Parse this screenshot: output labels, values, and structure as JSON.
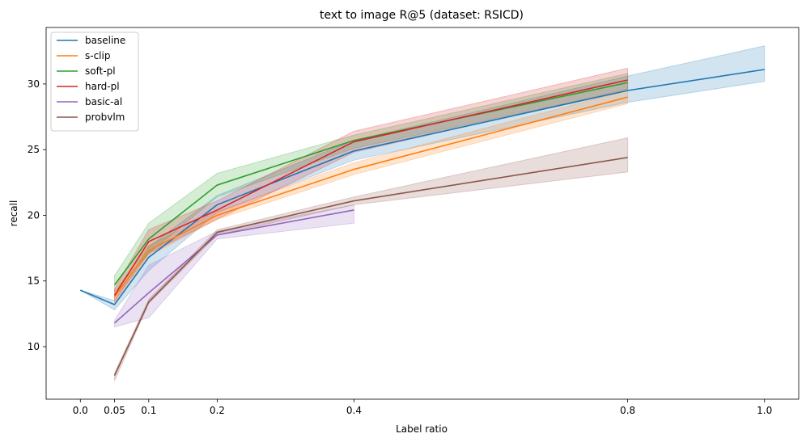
{
  "chart_data": {
    "type": "line",
    "title": "text to image R@5 (dataset: RSICD)",
    "xlabel": "Label ratio",
    "ylabel": "recall",
    "x_ticks": [
      0.0,
      0.05,
      0.1,
      0.2,
      0.4,
      0.8,
      1.0
    ],
    "x_tick_labels": [
      "0.0",
      "0.05",
      "0.1",
      "0.2",
      "0.4",
      "0.8",
      "1.0"
    ],
    "y_ticks": [
      10,
      15,
      20,
      25,
      30
    ],
    "y_tick_labels": [
      "10",
      "15",
      "20",
      "25",
      "30"
    ],
    "xlim": [
      -0.05,
      1.05
    ],
    "ylim": [
      6.0,
      34.3
    ],
    "grid": false,
    "legend_position": "top-left",
    "band": "shaded confidence interval per series",
    "series": [
      {
        "name": "baseline",
        "color": "#1f77b4",
        "x": [
          0.0,
          0.05,
          0.1,
          0.2,
          0.4,
          0.8,
          1.0
        ],
        "y": [
          14.3,
          13.2,
          16.8,
          20.8,
          24.9,
          29.5,
          31.1
        ],
        "lower": [
          14.3,
          12.8,
          15.8,
          20.2,
          24.2,
          28.6,
          30.2
        ],
        "upper": [
          14.3,
          13.5,
          17.6,
          21.5,
          25.7,
          30.6,
          32.9
        ]
      },
      {
        "name": "s-clip",
        "color": "#ff7f0e",
        "x": [
          0.05,
          0.1,
          0.2,
          0.4,
          0.8
        ],
        "y": [
          13.8,
          17.3,
          20.0,
          23.5,
          29.0
        ],
        "lower": [
          13.3,
          16.9,
          19.7,
          23.1,
          28.5
        ],
        "upper": [
          14.2,
          17.7,
          20.3,
          24.0,
          29.5
        ]
      },
      {
        "name": "soft-pl",
        "color": "#2ca02c",
        "x": [
          0.05,
          0.1,
          0.2,
          0.4,
          0.8
        ],
        "y": [
          14.7,
          18.2,
          22.3,
          25.7,
          30.1
        ],
        "lower": [
          14.2,
          17.1,
          21.4,
          25.1,
          29.5
        ],
        "upper": [
          15.4,
          19.4,
          23.2,
          26.1,
          30.8
        ]
      },
      {
        "name": "hard-pl",
        "color": "#d62728",
        "x": [
          0.05,
          0.1,
          0.2,
          0.4,
          0.8
        ],
        "y": [
          13.9,
          18.0,
          20.4,
          25.6,
          30.3
        ],
        "lower": [
          13.5,
          17.1,
          19.7,
          24.8,
          29.6
        ],
        "upper": [
          14.4,
          18.9,
          21.1,
          26.4,
          31.2
        ]
      },
      {
        "name": "basic-al",
        "color": "#9467bd",
        "x": [
          0.05,
          0.1,
          0.2,
          0.4
        ],
        "y": [
          11.8,
          14.1,
          18.5,
          20.4
        ],
        "lower": [
          11.5,
          12.2,
          18.2,
          19.4
        ],
        "upper": [
          12.0,
          16.2,
          18.8,
          20.8
        ]
      },
      {
        "name": "probvlm",
        "color": "#8c564b",
        "x": [
          0.05,
          0.1,
          0.2,
          0.4,
          0.8
        ],
        "y": [
          7.8,
          13.4,
          18.7,
          21.1,
          24.4
        ],
        "lower": [
          7.4,
          13.3,
          18.5,
          20.8,
          23.3
        ],
        "upper": [
          8.0,
          13.6,
          18.9,
          21.4,
          25.9
        ]
      }
    ]
  }
}
